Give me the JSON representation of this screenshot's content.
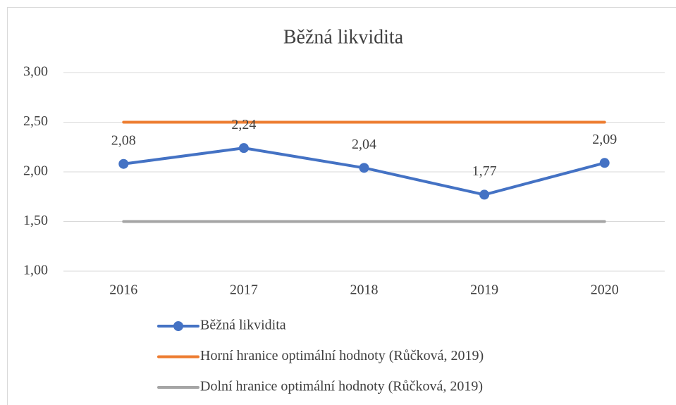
{
  "chart_data": {
    "type": "line",
    "title": "Běžná likvidita",
    "categories": [
      "2016",
      "2017",
      "2018",
      "2019",
      "2020"
    ],
    "series": [
      {
        "name": "Běžná likvidita",
        "color": "#4472c4",
        "values": [
          2.08,
          2.24,
          2.04,
          1.77,
          2.09
        ],
        "value_labels": [
          "2,08",
          "2,24",
          "2,04",
          "1,77",
          "2,09"
        ],
        "markers": true
      },
      {
        "name": "Horní hranice optimální hodnoty (Růčková, 2019)",
        "color": "#ed7d31",
        "values": [
          2.5,
          2.5,
          2.5,
          2.5,
          2.5
        ]
      },
      {
        "name": "Dolní hranice optimální hodnoty (Růčková, 2019)",
        "color": "#a5a5a5",
        "values": [
          1.5,
          1.5,
          1.5,
          1.5,
          1.5
        ]
      }
    ],
    "ylim": [
      1,
      3
    ],
    "yticks": [
      {
        "value": 1,
        "label": "1,00"
      },
      {
        "value": 1.5,
        "label": "1,50"
      },
      {
        "value": 2,
        "label": "2,00"
      },
      {
        "value": 2.5,
        "label": "2,50"
      },
      {
        "value": 3,
        "label": "3,00"
      }
    ],
    "grid": true,
    "legend": "bottom"
  }
}
